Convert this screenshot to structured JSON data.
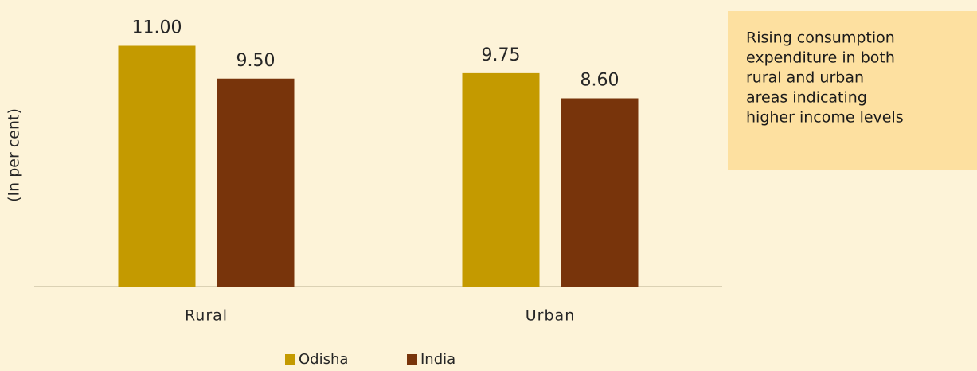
{
  "chart_data": {
    "type": "bar",
    "y_axis_label": "(In per cent)",
    "categories": [
      "Rural",
      "Urban"
    ],
    "series": [
      {
        "name": "Odisha",
        "color": "#c49a00",
        "values": [
          11,
          9.75
        ],
        "value_labels": [
          "11.00",
          "9.75"
        ]
      },
      {
        "name": "India",
        "color": "#78340b",
        "values": [
          9.5,
          8.6
        ],
        "value_labels": [
          "9.50",
          "8.60"
        ]
      }
    ],
    "ylim": [
      0,
      12
    ],
    "annotation": [
      "Rising consumption",
      "expenditure in both",
      "rural and urban",
      "areas indicating",
      "higher income levels"
    ]
  }
}
